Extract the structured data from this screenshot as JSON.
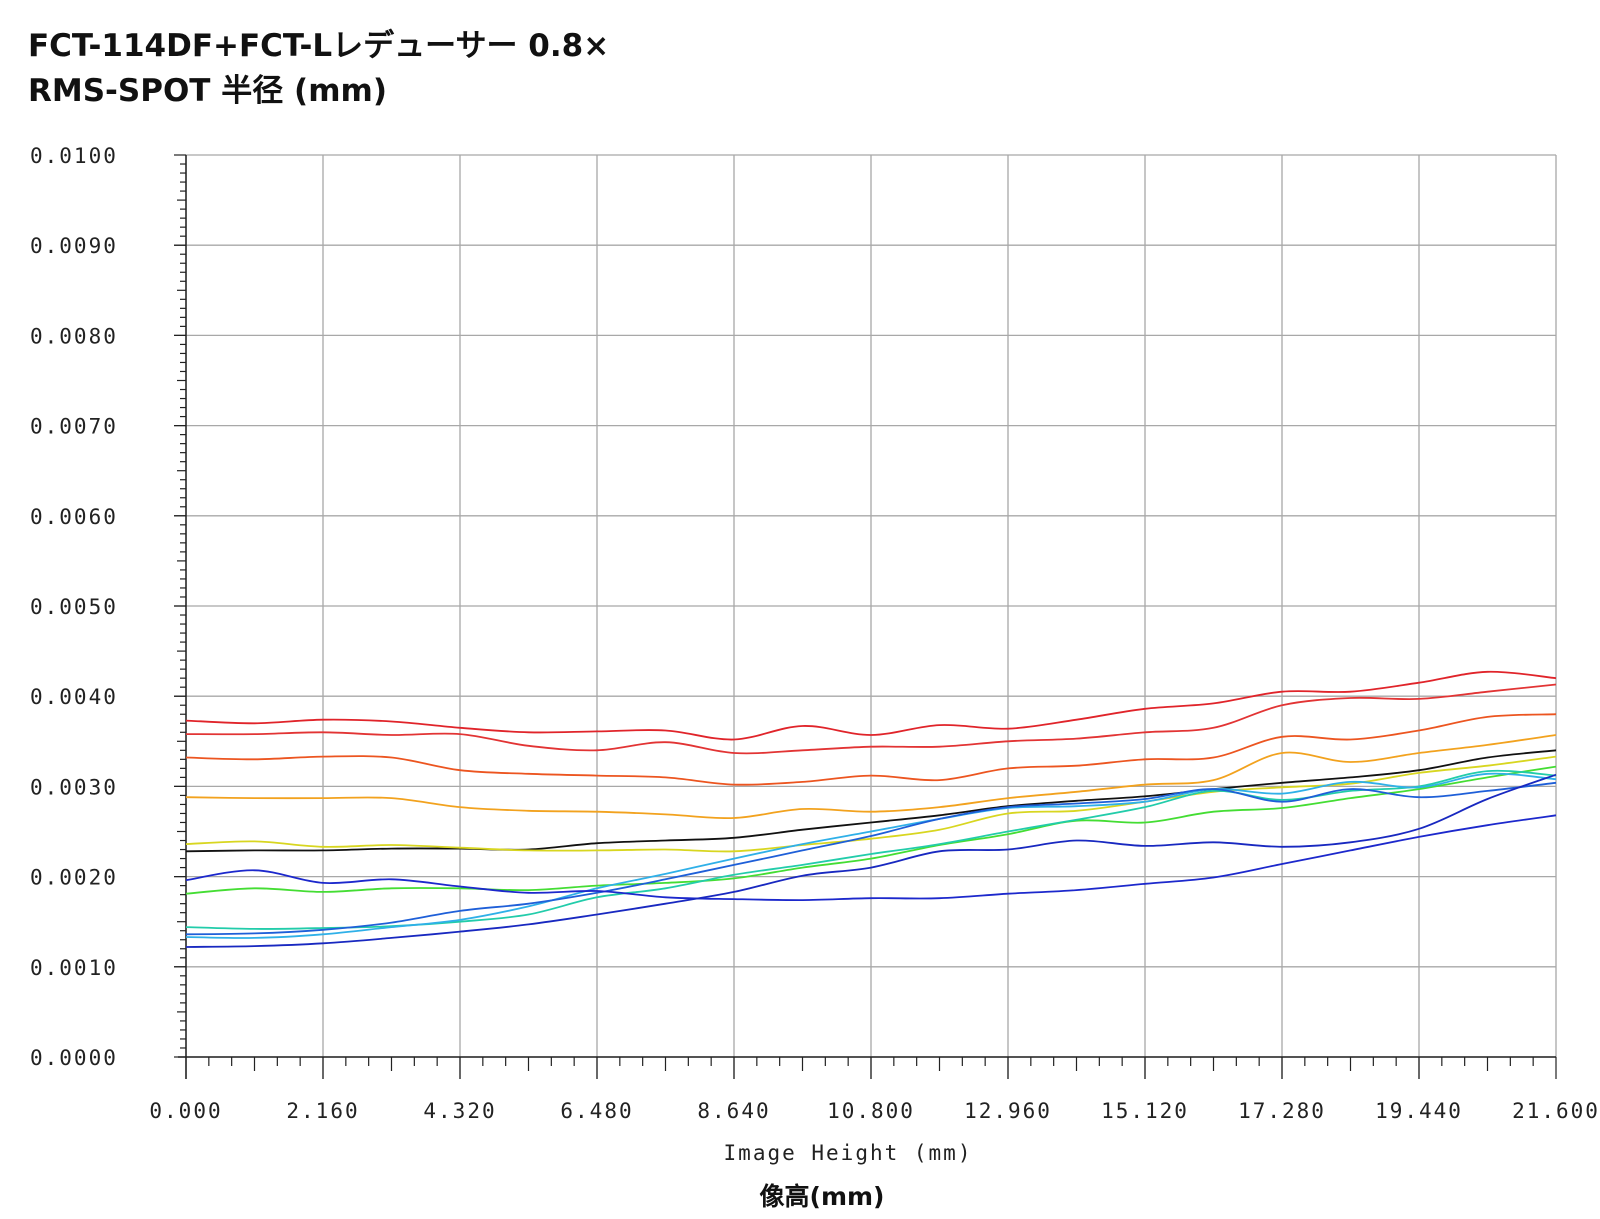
{
  "title_line1": "FCT-114DF+FCT-Lレデューサー 0.8×",
  "title_line2": "RMS-SPOT 半径 (mm)",
  "chart_data": {
    "type": "line",
    "title": "FCT-114DF+FCT-Lレデューサー 0.8× RMS-SPOT 半径 (mm)",
    "xlabel": "Image Height (mm)",
    "xlabel_jp": "像高(mm)",
    "ylabel": "",
    "xlim": [
      0,
      21.6
    ],
    "ylim": [
      0,
      0.01
    ],
    "grid": true,
    "x_ticks": [
      "0.000",
      "2.160",
      "4.320",
      "6.480",
      "8.640",
      "10.800",
      "12.960",
      "15.120",
      "17.280",
      "19.440",
      "21.600"
    ],
    "y_ticks": [
      "0.0000",
      "0.0010",
      "0.0020",
      "0.0030",
      "0.0040",
      "0.0050",
      "0.0060",
      "0.0070",
      "0.0080",
      "0.0090",
      "0.0100"
    ],
    "x": [
      0,
      1.08,
      2.16,
      3.24,
      4.32,
      5.4,
      6.48,
      7.56,
      8.64,
      9.72,
      10.8,
      11.88,
      12.96,
      14.04,
      15.12,
      16.2,
      17.28,
      18.36,
      19.44,
      20.52,
      21.6
    ],
    "series": [
      {
        "color": "#e0242a",
        "values": [
          0.00373,
          0.0037,
          0.00374,
          0.00372,
          0.00365,
          0.0036,
          0.00361,
          0.00362,
          0.00352,
          0.00367,
          0.00357,
          0.00368,
          0.00364,
          0.00374,
          0.00386,
          0.00392,
          0.00405,
          0.00405,
          0.00415,
          0.00427,
          0.0042
        ]
      },
      {
        "color": "#e23434",
        "values": [
          0.00358,
          0.00358,
          0.0036,
          0.00357,
          0.00358,
          0.00345,
          0.0034,
          0.00349,
          0.00337,
          0.0034,
          0.00344,
          0.00344,
          0.0035,
          0.00353,
          0.0036,
          0.00365,
          0.0039,
          0.00398,
          0.00397,
          0.00405,
          0.00413
        ]
      },
      {
        "color": "#ec5520",
        "values": [
          0.00332,
          0.0033,
          0.00333,
          0.00332,
          0.00318,
          0.00314,
          0.00312,
          0.0031,
          0.00302,
          0.00305,
          0.00312,
          0.00307,
          0.0032,
          0.00323,
          0.0033,
          0.00332,
          0.00355,
          0.00352,
          0.00362,
          0.00377,
          0.0038
        ]
      },
      {
        "color": "#f2a21e",
        "values": [
          0.00288,
          0.00287,
          0.00287,
          0.00287,
          0.00277,
          0.00273,
          0.00272,
          0.00269,
          0.00265,
          0.00275,
          0.00272,
          0.00277,
          0.00287,
          0.00294,
          0.00302,
          0.00307,
          0.00337,
          0.00327,
          0.00337,
          0.00346,
          0.00357
        ]
      },
      {
        "color": "#111111",
        "values": [
          0.00228,
          0.00229,
          0.00229,
          0.00231,
          0.00231,
          0.0023,
          0.00237,
          0.0024,
          0.00243,
          0.00252,
          0.0026,
          0.00268,
          0.00278,
          0.00284,
          0.00289,
          0.00297,
          0.00304,
          0.0031,
          0.00318,
          0.00332,
          0.0034
        ]
      },
      {
        "color": "#d8d620",
        "values": [
          0.00236,
          0.00239,
          0.00233,
          0.00235,
          0.00232,
          0.00229,
          0.00229,
          0.0023,
          0.00228,
          0.00235,
          0.00242,
          0.00252,
          0.0027,
          0.00273,
          0.00283,
          0.00294,
          0.00299,
          0.00303,
          0.00315,
          0.00323,
          0.00333
        ]
      },
      {
        "color": "#44dd33",
        "values": [
          0.00181,
          0.00187,
          0.00183,
          0.00187,
          0.00187,
          0.00185,
          0.0019,
          0.00193,
          0.00198,
          0.0021,
          0.0022,
          0.00235,
          0.00247,
          0.00262,
          0.0026,
          0.00272,
          0.00276,
          0.00287,
          0.00297,
          0.0031,
          0.00322
        ]
      },
      {
        "color": "#22ccaa",
        "values": [
          0.00144,
          0.00142,
          0.00143,
          0.00145,
          0.0015,
          0.00158,
          0.00177,
          0.00187,
          0.00202,
          0.00213,
          0.00225,
          0.00236,
          0.0025,
          0.00263,
          0.00277,
          0.00295,
          0.00285,
          0.00295,
          0.003,
          0.00317,
          0.00312
        ]
      },
      {
        "color": "#2fb0e8",
        "values": [
          0.00133,
          0.00132,
          0.00136,
          0.00144,
          0.00152,
          0.00167,
          0.00187,
          0.00203,
          0.0022,
          0.00236,
          0.0025,
          0.00264,
          0.00276,
          0.00278,
          0.00283,
          0.00297,
          0.00292,
          0.00305,
          0.00299,
          0.00314,
          0.00308
        ]
      },
      {
        "color": "#1e5fd8",
        "values": [
          0.00136,
          0.00137,
          0.00141,
          0.00149,
          0.00162,
          0.0017,
          0.00182,
          0.00197,
          0.00213,
          0.00229,
          0.00245,
          0.00264,
          0.00277,
          0.00281,
          0.00286,
          0.00297,
          0.00283,
          0.00297,
          0.00288,
          0.00295,
          0.00304
        ]
      },
      {
        "color": "#1c28cc",
        "values": [
          0.00196,
          0.00207,
          0.00193,
          0.00197,
          0.00189,
          0.00182,
          0.00184,
          0.00177,
          0.00175,
          0.00174,
          0.00176,
          0.00176,
          0.00181,
          0.00185,
          0.00192,
          0.00199,
          0.00214,
          0.00229,
          0.00244,
          0.00257,
          0.00268
        ]
      },
      {
        "color": "#1828c0",
        "values": [
          0.00122,
          0.00123,
          0.00126,
          0.00132,
          0.00139,
          0.00147,
          0.00158,
          0.0017,
          0.00183,
          0.00201,
          0.0021,
          0.00228,
          0.0023,
          0.0024,
          0.00234,
          0.00238,
          0.00233,
          0.00238,
          0.00253,
          0.00286,
          0.00313
        ]
      }
    ]
  }
}
